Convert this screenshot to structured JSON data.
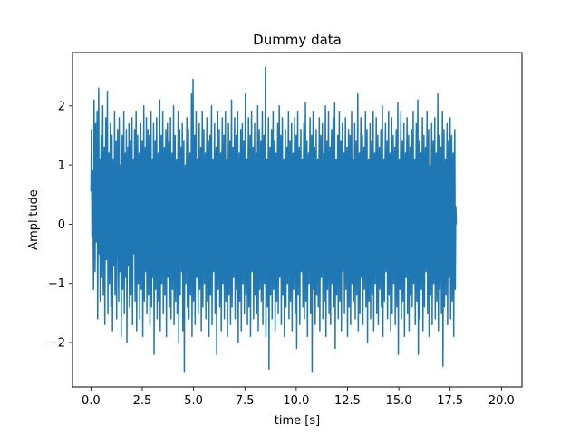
{
  "chart_data": {
    "type": "line",
    "title": "Dummy data",
    "xlabel": "time [s]",
    "ylabel": "Amplitude",
    "xlim": [
      -0.9,
      21.0
    ],
    "ylim": [
      -2.75,
      2.9
    ],
    "xticks": [
      0.0,
      2.5,
      5.0,
      7.5,
      10.0,
      12.5,
      15.0,
      17.5,
      20.0
    ],
    "xtick_labels": [
      "0.0",
      "2.5",
      "5.0",
      "7.5",
      "10.0",
      "12.5",
      "15.0",
      "17.5",
      "20.0"
    ],
    "yticks": [
      -2,
      -1,
      0,
      1,
      2
    ],
    "ytick_labels": [
      "−2",
      "−1",
      "0",
      "1",
      "2"
    ],
    "grid": false,
    "line_color": "#1f77b4",
    "series": [
      {
        "sample_interval": 0.025,
        "values": [
          0.55,
          1.6,
          -0.2,
          0.9,
          0.3,
          -1.1,
          2.1,
          0.4,
          -0.8,
          1.7,
          -0.3,
          0.6,
          1.9,
          -1.6,
          0.2,
          2.3,
          -0.5,
          1.1,
          -1.3,
          0.8,
          1.5,
          -0.9,
          0.4,
          2.0,
          -1.2,
          -0.1,
          1.3,
          -1.7,
          0.7,
          1.8,
          -0.6,
          0.1,
          2.25,
          -1.5,
          0.5,
          1.2,
          -1.0,
          0.9,
          1.7,
          -1.4,
          0.3,
          1.5,
          -1.8,
          0.6,
          1.1,
          -0.7,
          1.9,
          -1.2,
          0.2,
          1.4,
          -1.6,
          0.8,
          1.6,
          -0.4,
          -1.3,
          1.8,
          -0.8,
          0.5,
          1.0,
          -1.9,
          0.7,
          1.5,
          -1.1,
          0.3,
          1.9,
          -1.5,
          0.6,
          1.2,
          -0.9,
          1.6,
          -2.0,
          0.4,
          1.3,
          -0.7,
          1.7,
          -1.4,
          0.9,
          1.4,
          -1.2,
          0.2,
          1.8,
          -1.7,
          0.6,
          1.1,
          -0.5,
          1.6,
          -1.3,
          0.8,
          1.9,
          -1.8,
          0.3,
          1.5,
          -1.0,
          0.7,
          1.2,
          -1.6,
          0.5,
          1.7,
          -1.1,
          0.9,
          1.4,
          -1.9,
          0.4,
          2.0,
          -1.3,
          0.6,
          1.3,
          -0.8,
          1.8,
          -1.5,
          0.2,
          1.6,
          -1.2,
          0.7,
          1.5,
          -1.7,
          0.8,
          1.9,
          -1.4,
          0.3,
          1.1,
          -0.9,
          1.7,
          -2.2,
          0.5,
          1.4,
          -1.1,
          0.9,
          1.8,
          -1.6,
          0.4,
          1.2,
          -1.3,
          0.6,
          2.1,
          -1.8,
          0.7,
          1.5,
          -1.0,
          0.3,
          1.9,
          -1.5,
          0.8,
          1.3,
          -1.2,
          0.5,
          1.6,
          -1.9,
          0.6,
          1.7,
          -0.9,
          0.9,
          1.4,
          -1.4,
          0.2,
          1.8,
          -1.6,
          0.7,
          1.2,
          -1.1,
          0.5,
          2.0,
          -1.7,
          0.8,
          1.5,
          -1.3,
          0.4,
          1.1,
          -1.5,
          0.6,
          1.9,
          -2.0,
          0.3,
          1.6,
          -1.2,
          0.9,
          1.3,
          -0.8,
          1.7,
          -1.8,
          0.5,
          1.4,
          -2.5,
          0.7,
          1.0,
          -1.0,
          0.8,
          1.8,
          -1.4,
          0.4,
          1.6,
          -1.6,
          0.6,
          1.2,
          -1.2,
          0.3,
          2.2,
          -1.9,
          0.9,
          2.45,
          -1.3,
          0.5,
          1.5,
          -1.7,
          0.7,
          1.9,
          -0.9,
          0.4,
          1.1,
          -1.5,
          0.8,
          1.7,
          -1.1,
          0.6,
          1.3,
          -1.8,
          0.2,
          1.9,
          -1.4,
          0.7,
          1.6,
          -1.0,
          0.5,
          1.2,
          -1.6,
          0.9,
          1.8,
          -1.3,
          0.3,
          1.4,
          -1.9,
          0.6,
          1.5,
          -1.2,
          0.8,
          2.0,
          -1.7,
          0.4,
          1.1,
          -0.8,
          0.7,
          1.7,
          -1.5,
          0.5,
          1.3,
          -2.2,
          0.9,
          1.9,
          -1.1,
          0.3,
          1.6,
          -1.4,
          0.6,
          1.2,
          -1.8,
          0.8,
          1.8,
          -1.0,
          0.4,
          1.5,
          -1.6,
          0.7,
          1.9,
          -1.3,
          0.5,
          1.1,
          -1.9,
          0.2,
          1.7,
          -1.2,
          0.9,
          1.4,
          -1.7,
          0.6,
          2.1,
          -1.4,
          0.4,
          1.3,
          -0.9,
          0.8,
          1.8,
          -1.6,
          0.5,
          1.5,
          -1.1,
          0.7,
          1.9,
          -2.0,
          0.3,
          1.2,
          -1.3,
          0.9,
          1.6,
          -1.8,
          0.6,
          1.7,
          -1.0,
          0.4,
          1.4,
          -1.5,
          0.8,
          2.2,
          -1.2,
          0.5,
          1.1,
          -1.7,
          0.7,
          1.8,
          -1.4,
          0.3,
          1.5,
          -1.9,
          0.6,
          1.9,
          -0.8,
          0.9,
          1.3,
          -1.6,
          0.4,
          1.7,
          -1.2,
          0.7,
          1.2,
          -1.5,
          0.5,
          2.0,
          -1.8,
          0.8,
          1.6,
          -1.1,
          0.2,
          1.4,
          -1.3,
          0.6,
          1.9,
          -1.7,
          0.9,
          1.5,
          -1.0,
          0.4,
          2.65,
          -1.9,
          0.7,
          1.1,
          -1.4,
          0.5,
          1.8,
          -2.45,
          0.8,
          1.3,
          -1.2,
          0.6,
          1.6,
          -1.6,
          0.3,
          1.9,
          -1.1,
          0.7,
          1.4,
          -1.8,
          0.5,
          1.2,
          -1.3,
          0.9,
          1.7,
          -1.5,
          0.4,
          2.0,
          -0.9,
          0.6,
          1.5,
          -1.7,
          0.8,
          1.8,
          -1.2,
          0.3,
          1.1,
          -1.9,
          0.7,
          1.6,
          -1.4,
          0.5,
          1.3,
          -1.0,
          0.9,
          1.9,
          -1.6,
          0.4,
          1.4,
          -1.3,
          0.6,
          1.7,
          -1.8,
          0.8,
          1.2,
          -1.1,
          0.2,
          1.8,
          -1.5,
          0.7,
          1.5,
          -2.1,
          0.5,
          1.9,
          -1.2,
          0.9,
          1.3,
          -1.7,
          0.4,
          1.6,
          -0.8,
          0.6,
          1.1,
          -1.4,
          0.8,
          1.7,
          -1.6,
          0.3,
          2.05,
          -1.3,
          0.7,
          1.4,
          -1.9,
          0.5,
          1.2,
          -1.0,
          0.9,
          1.8,
          -1.5,
          0.4,
          1.5,
          -2.5,
          0.6,
          1.9,
          -1.1,
          0.8,
          1.3,
          -1.7,
          0.2,
          1.6,
          -1.2,
          0.7,
          1.1,
          -1.4,
          0.5,
          1.8,
          -1.8,
          0.9,
          1.5,
          -0.9,
          0.4,
          1.7,
          -1.6,
          0.6,
          1.2,
          -1.3,
          0.8,
          2.0,
          -1.9,
          0.3,
          1.4,
          -1.1,
          0.7,
          1.9,
          -1.5,
          0.5,
          1.3,
          -1.7,
          0.9,
          1.6,
          -1.0,
          0.4,
          1.8,
          -1.4,
          0.6,
          2.05,
          -2.1,
          0.8,
          1.1,
          -1.2,
          0.3,
          1.5,
          -1.6,
          0.7,
          1.9,
          -1.3,
          0.5,
          1.4,
          -1.8,
          0.9,
          1.7,
          -0.8,
          0.4,
          1.2,
          -1.5,
          0.6,
          1.8,
          -1.1,
          0.8,
          1.3,
          -1.9,
          0.2,
          1.6,
          -1.4,
          0.7,
          1.5,
          -1.7,
          0.5,
          1.9,
          -1.0,
          0.9,
          1.1,
          -1.3,
          0.4,
          1.7,
          -1.6,
          0.6,
          1.4,
          -1.2,
          0.8,
          2.2,
          -1.8,
          0.3,
          1.2,
          -1.5,
          0.7,
          1.8,
          -0.9,
          0.5,
          1.5,
          -1.7,
          0.9,
          1.3,
          -1.1,
          0.4,
          1.9,
          -1.4,
          0.6,
          1.6,
          -2.0,
          0.8,
          1.1,
          -1.3,
          0.3,
          1.7,
          -1.6,
          0.7,
          1.4,
          -1.2,
          0.5,
          1.9,
          -1.8,
          0.9,
          1.2,
          -1.0,
          0.4,
          1.8,
          -1.5,
          0.6,
          1.5,
          -1.7,
          0.8,
          1.3,
          -1.1,
          0.2,
          1.6,
          -1.4,
          0.7,
          2.0,
          -1.9,
          0.5,
          1.1,
          -1.3,
          0.9,
          1.7,
          -0.8,
          0.4,
          1.4,
          -1.6,
          0.6,
          1.9,
          -1.2,
          0.8,
          1.2,
          -1.8,
          0.3,
          1.8,
          -1.5,
          0.7,
          1.5,
          -1.0,
          0.5,
          1.3,
          -1.7,
          0.9,
          1.6,
          -1.4,
          0.4,
          2.05,
          -2.2,
          0.6,
          1.1,
          -1.1,
          0.8,
          1.9,
          -1.6,
          0.2,
          1.4,
          -1.3,
          0.7,
          1.7,
          -1.9,
          0.5,
          1.2,
          -0.9,
          0.9,
          1.8,
          -1.5,
          0.4,
          1.5,
          -1.8,
          0.6,
          1.3,
          -1.2,
          0.8,
          1.6,
          -1.4,
          0.3,
          1.9,
          -1.0,
          0.7,
          1.1,
          -1.7,
          0.5,
          1.7,
          -1.3,
          0.9,
          2.1,
          -2.2,
          0.4,
          1.4,
          -1.6,
          0.6,
          1.2,
          -1.1,
          0.8,
          1.8,
          -1.8,
          0.2,
          1.5,
          -1.4,
          0.7,
          1.3,
          -0.8,
          0.5,
          1.9,
          -1.5,
          0.9,
          1.6,
          -1.9,
          0.4,
          1.0,
          -1.2,
          0.6,
          1.7,
          -1.7,
          0.8,
          1.4,
          -1.0,
          0.3,
          1.8,
          -1.6,
          0.7,
          1.2,
          -1.3,
          0.5,
          2.2,
          -1.8,
          0.9,
          1.5,
          -1.1,
          0.4,
          1.3,
          -1.5,
          0.6,
          1.9,
          -2.4,
          0.8,
          1.6,
          -1.4,
          0.2,
          1.1,
          -1.2,
          0.7,
          1.7,
          -1.7,
          0.5,
          1.4,
          -0.9,
          0.9,
          1.8,
          -1.6,
          0.4,
          1.5,
          -1.3,
          0.6,
          1.2,
          -1.9,
          0.8,
          1.6,
          -1.1,
          0.3,
          0.0
        ]
      }
    ]
  }
}
